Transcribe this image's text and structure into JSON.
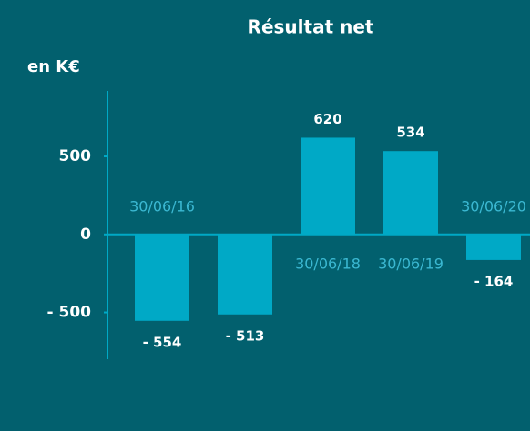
{
  "chart_data": {
    "type": "bar",
    "title": "Résultat net",
    "y_label": "en K€",
    "categories": [
      "30/06/16",
      null,
      "30/06/18",
      "30/06/19",
      "30/06/20"
    ],
    "values": [
      -554,
      -513,
      620,
      534,
      -164
    ],
    "value_labels": [
      "- 554",
      "- 513",
      "620",
      "534",
      "- 164"
    ],
    "color": "#00a9c6",
    "ylim": [
      -800,
      920
    ],
    "yticks": [
      {
        "value": -500,
        "label": "- 500"
      },
      0,
      500
    ]
  }
}
